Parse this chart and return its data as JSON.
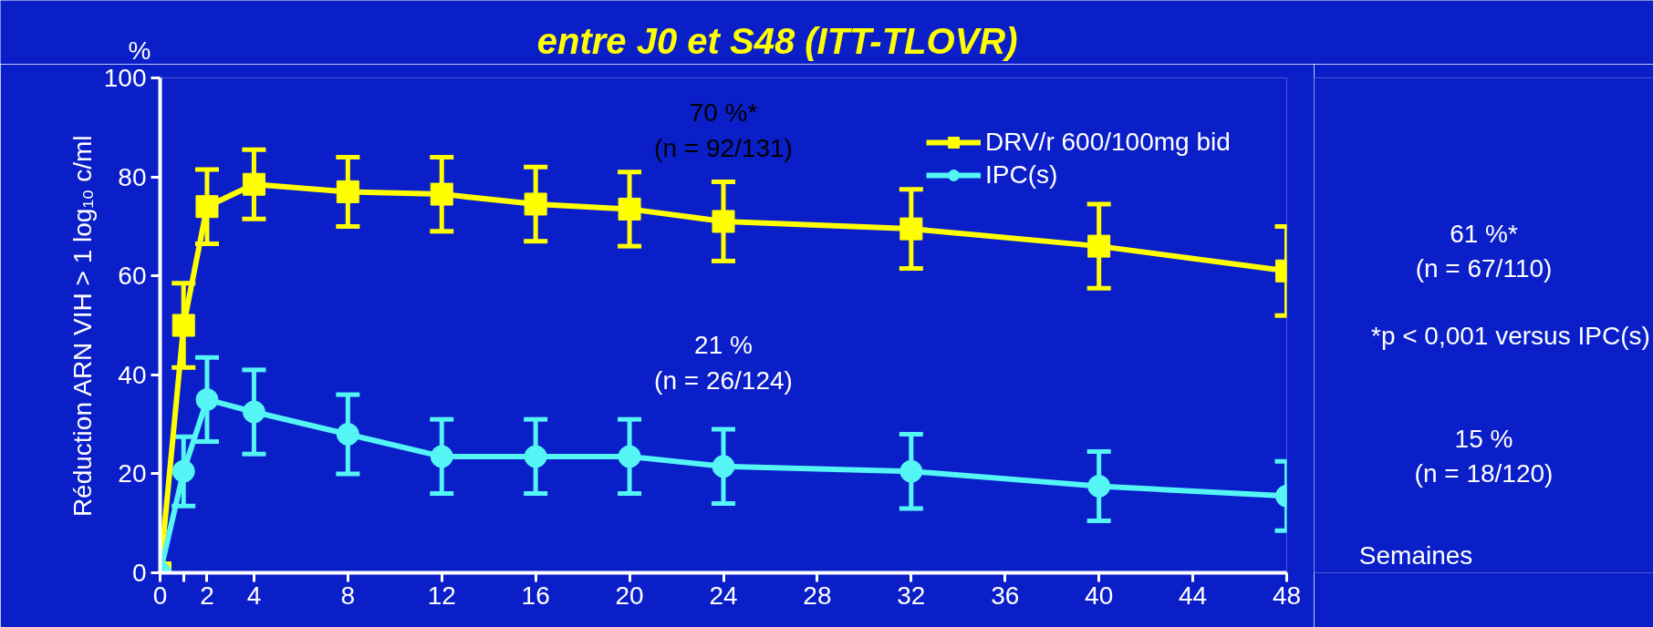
{
  "chart_data": {
    "type": "line",
    "title": "entre J0 et S48 (ITT-TLOVR)",
    "ylabel": "Réduction ARN VIH > 1 log₁₀ c/ml",
    "xlabel": "Semaines",
    "x": [
      0,
      1,
      2,
      4,
      8,
      12,
      16,
      20,
      24,
      32,
      40,
      48
    ],
    "series": [
      {
        "name": "DRV/r 600/100mg bid",
        "color": "#ffff00",
        "marker": "square",
        "values": [
          0,
          50,
          74,
          78.5,
          77,
          76.5,
          74.5,
          73.5,
          71,
          69.5,
          66,
          61
        ],
        "errors": [
          null,
          8.5,
          7.5,
          7,
          7,
          7.5,
          7.5,
          7.5,
          8,
          8,
          8.5,
          9
        ]
      },
      {
        "name": "IPC(s)",
        "color": "#55f5f5",
        "marker": "circle",
        "values": [
          0,
          20.5,
          35,
          32.5,
          28,
          23.5,
          23.5,
          23.5,
          21.5,
          20.5,
          17.5,
          15.5
        ],
        "errors": [
          null,
          7,
          8.5,
          8.5,
          8,
          7.5,
          7.5,
          7.5,
          7.5,
          7.5,
          7,
          7
        ]
      }
    ],
    "xlim": [
      0,
      48
    ],
    "xticks": [
      0,
      {
        "value": 1,
        "label": null
      },
      2,
      4,
      8,
      12,
      16,
      20,
      24,
      28,
      32,
      36,
      40,
      44,
      48
    ],
    "ylim": [
      0,
      100
    ],
    "yticks": [
      0,
      20,
      40,
      60,
      80,
      100
    ],
    "grid": false,
    "legend": "top right",
    "annotations": [
      "%",
      "70 %*\n(n = 92/131)",
      "21 %\n(n = 26/124)",
      "61 %*\n(n = 67/110)",
      "15 %\n(n = 18/120)",
      "*p < 0,001 versus IPC(s)"
    ]
  }
}
